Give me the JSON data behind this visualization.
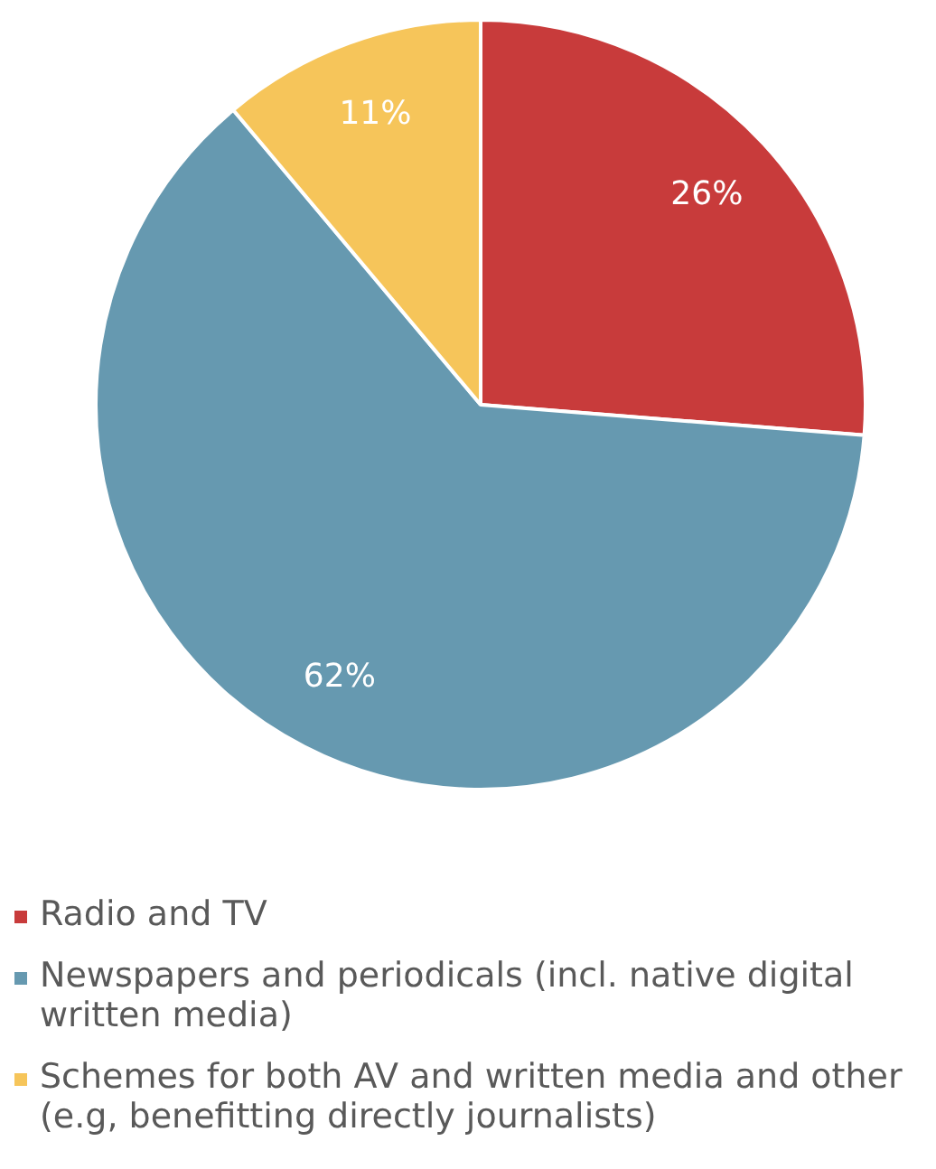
{
  "chart_data": {
    "type": "pie",
    "categories": [
      "Radio and TV",
      "Newspapers and periodicals (incl. native digital written media)",
      "Schemes for both AV and written media and other (e.g, benefitting directly journalists)"
    ],
    "values": [
      26,
      62,
      11
    ],
    "colors": [
      "#c83b3b",
      "#6699b0",
      "#f6c55a"
    ],
    "value_labels": [
      "26%",
      "62%",
      "11%"
    ],
    "legend": "bottom"
  }
}
